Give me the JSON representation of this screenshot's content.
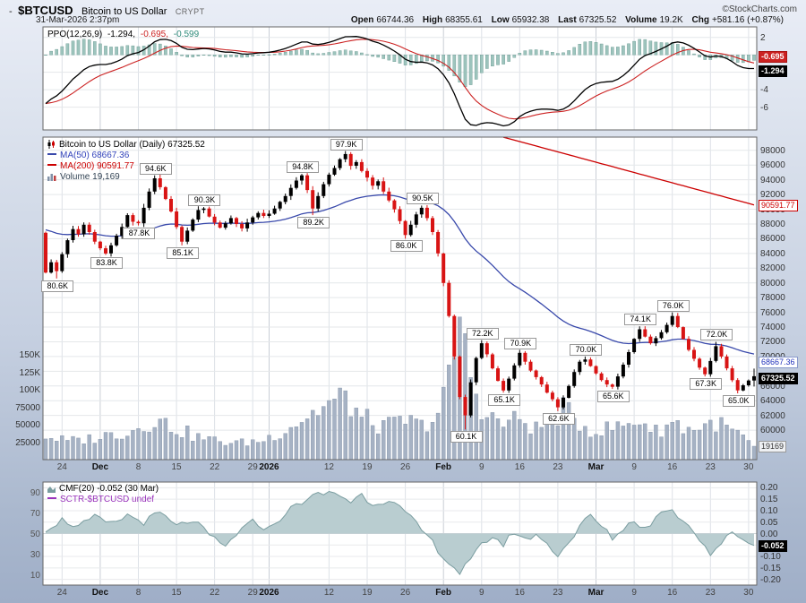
{
  "header": {
    "symbol": "$BTCUSD",
    "name": "Bitcoin to US Dollar",
    "exchange": "CRYPT",
    "copyright": "©StockCharts.com",
    "datetime": "31-Mar-2026 2:37pm",
    "quote": {
      "open_label": "Open",
      "open": "66744.36",
      "high_label": "High",
      "high": "68355.61",
      "low_label": "Low",
      "low": "65932.38",
      "last_label": "Last",
      "last": "67325.52",
      "volume_label": "Volume",
      "volume": "19.2K",
      "chg_label": "Chg",
      "chg": "+581.16 (+0.87%)"
    }
  },
  "ppo_panel": {
    "legend": {
      "title": "PPO(12,26,9)",
      "v1": "-1.294,",
      "v2": "-0.695,",
      "v3": "-0.599"
    },
    "axis": [
      {
        "label": "2",
        "v": 2
      },
      {
        "label": "0",
        "v": 0
      },
      {
        "label": "-2",
        "v": -2
      },
      {
        "label": "-4",
        "v": -4
      },
      {
        "label": "-6",
        "v": -6
      }
    ],
    "tag_signal": "-0.695",
    "tag_ppo": "-1.294"
  },
  "main_panel": {
    "legend_title": "Bitcoin to US Dollar (Daily) 67325.52",
    "ma50_label": "MA(50) 68667.36",
    "ma200_label": "MA(200) 90591.77",
    "volume_label": "Volume 19,169",
    "price_axis": [
      98000,
      96000,
      94000,
      92000,
      90000,
      88000,
      86000,
      84000,
      82000,
      80000,
      78000,
      76000,
      74000,
      72000,
      70000,
      66000,
      64000,
      62000,
      60000
    ],
    "tags": {
      "ma200": "90591.77",
      "ma50": "68667.36",
      "last": "67325.52",
      "volume": "19169"
    },
    "volume_axis": [
      {
        "label": "150K",
        "v": 150
      },
      {
        "label": "125K",
        "v": 125
      },
      {
        "label": "100K",
        "v": 100
      },
      {
        "label": "75000",
        "v": 75
      },
      {
        "label": "50000",
        "v": 50
      },
      {
        "label": "25000",
        "v": 25
      }
    ],
    "annotations": [
      {
        "idx": 2,
        "text": "80.6K",
        "side": "below"
      },
      {
        "idx": 11,
        "text": "83.8K",
        "side": "below"
      },
      {
        "idx": 17,
        "text": "87.8K",
        "side": "below"
      },
      {
        "idx": 20,
        "text": "94.6K",
        "side": "above"
      },
      {
        "idx": 25,
        "text": "85.1K",
        "side": "below"
      },
      {
        "idx": 29,
        "text": "90.3K",
        "side": "above"
      },
      {
        "idx": 47,
        "text": "94.8K",
        "side": "above"
      },
      {
        "idx": 49,
        "text": "89.2K",
        "side": "below"
      },
      {
        "idx": 55,
        "text": "97.9K",
        "side": "above"
      },
      {
        "idx": 66,
        "text": "86.0K",
        "side": "below"
      },
      {
        "idx": 69,
        "text": "90.5K",
        "side": "above"
      },
      {
        "idx": 77,
        "text": "60.1K",
        "side": "below"
      },
      {
        "idx": 80,
        "text": "72.2K",
        "side": "above"
      },
      {
        "idx": 84,
        "text": "65.1K",
        "side": "below"
      },
      {
        "idx": 87,
        "text": "70.9K",
        "side": "above"
      },
      {
        "idx": 94,
        "text": "62.6K",
        "side": "below"
      },
      {
        "idx": 99,
        "text": "70.0K",
        "side": "above"
      },
      {
        "idx": 104,
        "text": "65.6K",
        "side": "below"
      },
      {
        "idx": 109,
        "text": "74.1K",
        "side": "above"
      },
      {
        "idx": 115,
        "text": "76.0K",
        "side": "above"
      },
      {
        "idx": 121,
        "text": "67.3K",
        "side": "below"
      },
      {
        "idx": 123,
        "text": "72.0K",
        "side": "above"
      },
      {
        "idx": 127,
        "text": "65.0K",
        "side": "below"
      }
    ]
  },
  "cmf_panel": {
    "legend1": "CMF(20) -0.052 (30 Mar)",
    "legend2": "SCTR-$BTCUSD undef",
    "left_axis": [
      {
        "label": "90",
        "v": 90
      },
      {
        "label": "70",
        "v": 70
      },
      {
        "label": "50",
        "v": 50
      },
      {
        "label": "30",
        "v": 30
      },
      {
        "label": "10",
        "v": 10
      }
    ],
    "right_axis": [
      {
        "label": "0.20",
        "v": 0.2
      },
      {
        "label": "0.15",
        "v": 0.15
      },
      {
        "label": "0.10",
        "v": 0.1
      },
      {
        "label": "0.05",
        "v": 0.05
      },
      {
        "label": "0.00",
        "v": 0.0
      },
      {
        "label": "-0.05",
        "v": -0.05
      },
      {
        "label": "-0.10",
        "v": -0.1
      },
      {
        "label": "-0.15",
        "v": -0.15
      },
      {
        "label": "-0.20",
        "v": -0.2
      }
    ],
    "tag": "-0.052"
  },
  "x_axis": {
    "ticks": [
      {
        "label": "24",
        "idx": 3
      },
      {
        "label": "Dec",
        "idx": 10,
        "bold": true
      },
      {
        "label": "8",
        "idx": 17
      },
      {
        "label": "15",
        "idx": 24
      },
      {
        "label": "22",
        "idx": 31
      },
      {
        "label": "29",
        "idx": 38
      },
      {
        "label": "2026",
        "idx": 41,
        "bold": true
      },
      {
        "label": "12",
        "idx": 52
      },
      {
        "label": "19",
        "idx": 59
      },
      {
        "label": "26",
        "idx": 66
      },
      {
        "label": "Feb",
        "idx": 73,
        "bold": true
      },
      {
        "label": "9",
        "idx": 80
      },
      {
        "label": "16",
        "idx": 87
      },
      {
        "label": "23",
        "idx": 94
      },
      {
        "label": "Mar",
        "idx": 101,
        "bold": true
      },
      {
        "label": "9",
        "idx": 108
      },
      {
        "label": "16",
        "idx": 115
      },
      {
        "label": "23",
        "idx": 122
      },
      {
        "label": "30",
        "idx": 129
      }
    ]
  },
  "chart_data": [
    {
      "key": "price",
      "type": "candlestick",
      "title": "Bitcoin to US Dollar (Daily)",
      "last": 67325.52,
      "ma50_last": 68667.36,
      "ma200_last": 90591.77,
      "ylim": [
        56000,
        99800
      ],
      "first_open": 86800,
      "closes": [
        81400,
        82800,
        81600,
        83900,
        85800,
        87300,
        86600,
        87900,
        86900,
        85600,
        84700,
        84000,
        85100,
        86400,
        87600,
        89200,
        88300,
        88100,
        90200,
        92400,
        94200,
        93000,
        91400,
        89700,
        87600,
        85600,
        87100,
        88600,
        89900,
        90100,
        89000,
        88200,
        87500,
        88100,
        88800,
        88000,
        87400,
        88200,
        88900,
        89500,
        89100,
        89400,
        90100,
        91000,
        91800,
        92900,
        93900,
        94600,
        92600,
        90100,
        91800,
        93400,
        94700,
        95600,
        96800,
        97500,
        95900,
        96400,
        95200,
        94300,
        93200,
        93800,
        92400,
        91200,
        90000,
        88400,
        86500,
        87900,
        89300,
        90200,
        88800,
        86900,
        84000,
        80000,
        75500,
        70000,
        64500,
        62000,
        66500,
        69800,
        71800,
        70300,
        68400,
        66700,
        65400,
        67000,
        68800,
        70500,
        69300,
        68100,
        67200,
        66200,
        65100,
        64200,
        63100,
        64400,
        66000,
        67900,
        69300,
        69600,
        68700,
        67700,
        66800,
        66200,
        65900,
        67300,
        68900,
        70600,
        72400,
        73700,
        72700,
        71800,
        72500,
        73300,
        74300,
        75500,
        74000,
        72400,
        70900,
        69700,
        68500,
        67600,
        69400,
        71400,
        70000,
        68400,
        66800,
        65400,
        66100,
        66744.36,
        67325.52
      ],
      "extremes": {
        "2": {
          "low": 80600
        },
        "11": {
          "low": 83800
        },
        "17": {
          "low": 87800
        },
        "20": {
          "high": 94600
        },
        "25": {
          "low": 85100
        },
        "29": {
          "high": 90300
        },
        "47": {
          "high": 94800
        },
        "49": {
          "low": 89200
        },
        "55": {
          "high": 97900
        },
        "66": {
          "low": 86000
        },
        "69": {
          "high": 90500
        },
        "77": {
          "low": 60100
        },
        "80": {
          "high": 72200
        },
        "84": {
          "low": 65100
        },
        "87": {
          "high": 70900
        },
        "94": {
          "low": 62600
        },
        "99": {
          "high": 70000
        },
        "104": {
          "low": 65600
        },
        "109": {
          "high": 74100
        },
        "115": {
          "high": 76000
        },
        "121": {
          "low": 67300
        },
        "123": {
          "high": 72000
        },
        "127": {
          "low": 65000
        },
        "130": {
          "high": 68355.61,
          "low": 65932.38
        }
      }
    },
    {
      "key": "ppo",
      "type": "line",
      "title": "PPO(12,26,9)",
      "last_ppo": -1.294,
      "last_signal": -0.695,
      "last_hist": -0.599,
      "ylim": [
        -8.6,
        3.2
      ]
    },
    {
      "key": "volume",
      "type": "bar",
      "title": "Volume",
      "last": 19169,
      "keypoints_k": [
        [
          0,
          34
        ],
        [
          4,
          26
        ],
        [
          8,
          30
        ],
        [
          12,
          36
        ],
        [
          16,
          42
        ],
        [
          20,
          58
        ],
        [
          24,
          44
        ],
        [
          28,
          32
        ],
        [
          32,
          26
        ],
        [
          36,
          24
        ],
        [
          40,
          28
        ],
        [
          44,
          44
        ],
        [
          48,
          62
        ],
        [
          52,
          80
        ],
        [
          55,
          88
        ],
        [
          58,
          60
        ],
        [
          62,
          46
        ],
        [
          66,
          56
        ],
        [
          69,
          48
        ],
        [
          72,
          66
        ],
        [
          74,
          110
        ],
        [
          76,
          200
        ],
        [
          77,
          155
        ],
        [
          79,
          95
        ],
        [
          81,
          62
        ],
        [
          84,
          52
        ],
        [
          87,
          58
        ],
        [
          90,
          44
        ],
        [
          93,
          58
        ],
        [
          95,
          72
        ],
        [
          97,
          56
        ],
        [
          99,
          48
        ],
        [
          101,
          40
        ],
        [
          104,
          46
        ],
        [
          107,
          50
        ],
        [
          109,
          58
        ],
        [
          112,
          40
        ],
        [
          115,
          54
        ],
        [
          118,
          44
        ],
        [
          121,
          48
        ],
        [
          123,
          54
        ],
        [
          125,
          44
        ],
        [
          127,
          38
        ],
        [
          129,
          24
        ],
        [
          130,
          19.169
        ]
      ]
    },
    {
      "key": "cmf",
      "type": "area",
      "title": "CMF(20)",
      "last": -0.052,
      "ylim": [
        -0.2,
        0.2
      ],
      "keypoints": [
        [
          0,
          0.02
        ],
        [
          3,
          0.06
        ],
        [
          6,
          0.03
        ],
        [
          9,
          0.07
        ],
        [
          12,
          0.04
        ],
        [
          15,
          0.08
        ],
        [
          18,
          0.05
        ],
        [
          21,
          0.09
        ],
        [
          24,
          0.03
        ],
        [
          27,
          0.06
        ],
        [
          30,
          -0.01
        ],
        [
          33,
          -0.06
        ],
        [
          35,
          0.0
        ],
        [
          38,
          0.05
        ],
        [
          41,
          0.02
        ],
        [
          44,
          0.09
        ],
        [
          47,
          0.14
        ],
        [
          50,
          0.17
        ],
        [
          53,
          0.18
        ],
        [
          56,
          0.14
        ],
        [
          58,
          0.17
        ],
        [
          60,
          0.13
        ],
        [
          63,
          0.15
        ],
        [
          66,
          0.09
        ],
        [
          68,
          0.04
        ],
        [
          70,
          -0.01
        ],
        [
          72,
          -0.07
        ],
        [
          74,
          -0.13
        ],
        [
          76,
          -0.17
        ],
        [
          78,
          -0.12
        ],
        [
          80,
          -0.05
        ],
        [
          82,
          -0.01
        ],
        [
          84,
          -0.05
        ],
        [
          86,
          0.01
        ],
        [
          88,
          -0.03
        ],
        [
          90,
          0.0
        ],
        [
          92,
          -0.05
        ],
        [
          94,
          -0.09
        ],
        [
          96,
          -0.04
        ],
        [
          98,
          0.03
        ],
        [
          100,
          0.08
        ],
        [
          102,
          0.03
        ],
        [
          104,
          -0.02
        ],
        [
          106,
          0.02
        ],
        [
          108,
          0.06
        ],
        [
          110,
          0.02
        ],
        [
          112,
          0.07
        ],
        [
          114,
          0.11
        ],
        [
          116,
          0.08
        ],
        [
          118,
          0.04
        ],
        [
          120,
          -0.02
        ],
        [
          122,
          -0.09
        ],
        [
          124,
          -0.04
        ],
        [
          126,
          0.0
        ],
        [
          128,
          -0.02
        ],
        [
          130,
          -0.052
        ]
      ]
    }
  ],
  "colors": {
    "up_candle": "#000000",
    "down_candle": "#d81414",
    "ma50": "#3949ab",
    "ma200": "#cc0000",
    "ppo_line": "#000000",
    "ppo_signal": "#cc2222",
    "hist_fill": "#9dc4bd",
    "hist_stroke": "#6b9a92",
    "vol_fill": "#a6b2c4",
    "vol_stroke": "#8292a8",
    "cmf_fill": "#b9cdd0",
    "cmf_stroke": "#7a9da0"
  }
}
